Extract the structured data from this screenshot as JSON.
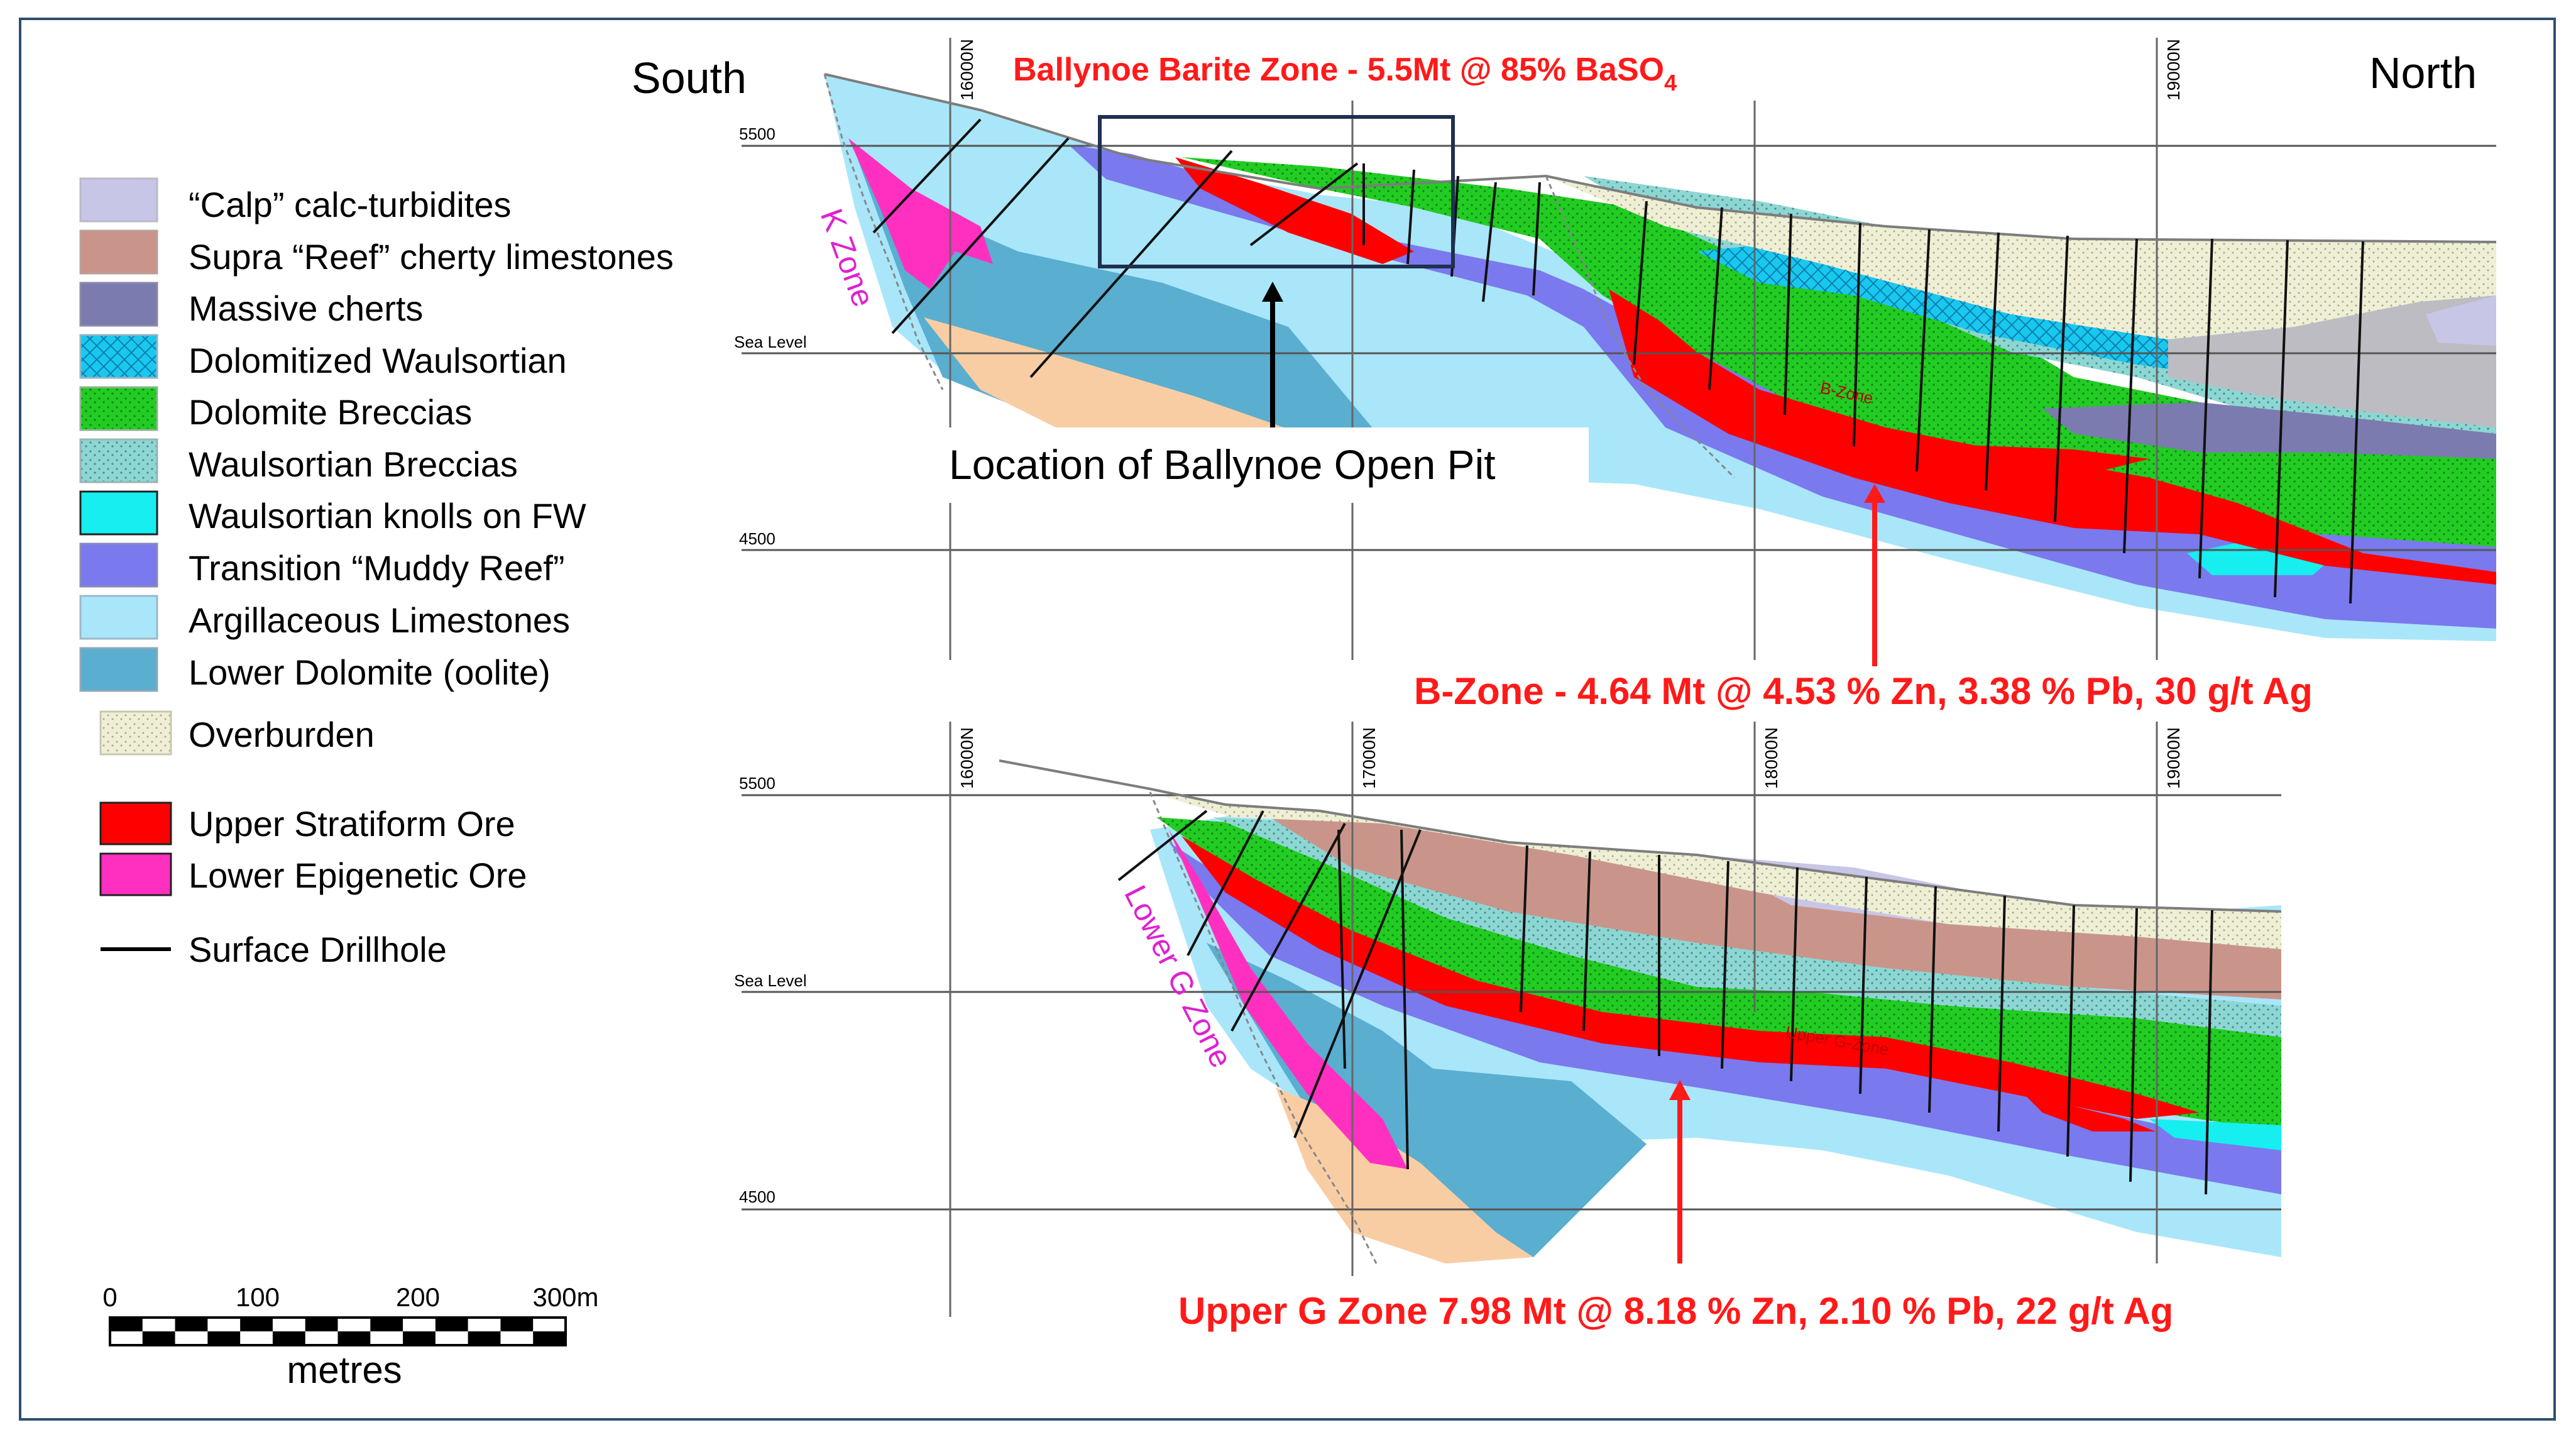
{
  "legend": [
    {
      "label": "“Calp” calc-turbidites",
      "fill": "#c8c6e6",
      "pattern": "none"
    },
    {
      "label": "Supra “Reef” cherty limestones",
      "fill": "#c9958a",
      "pattern": "none"
    },
    {
      "label": "Massive cherts",
      "fill": "#7b7bb0",
      "pattern": "none"
    },
    {
      "label": "Dolomitized Waulsortian",
      "fill": "#19c8ee",
      "pattern": "hatch"
    },
    {
      "label": "Dolomite Breccias",
      "fill": "#22cc22",
      "pattern": "dots"
    },
    {
      "label": "Waulsortian Breccias",
      "fill": "#8ed6d2",
      "pattern": "dots"
    },
    {
      "label": "Waulsortian knolls on FW",
      "fill": "#17eef0",
      "pattern": "none"
    },
    {
      "label": "Transition “Muddy Reef”",
      "fill": "#7b79ee",
      "pattern": "none"
    },
    {
      "label": "Argillaceous Limestones",
      "fill": "#a9e6fa",
      "pattern": "none"
    },
    {
      "label": "Lower Dolomite (oolite)",
      "fill": "#5aaed0",
      "pattern": "none"
    },
    {
      "label": "Overburden",
      "fill": "#efefd6",
      "pattern": "dots"
    },
    {
      "label": "Upper Stratiform Ore",
      "fill": "#ff0000",
      "pattern": "none"
    },
    {
      "label": "Lower Epigenetic Ore",
      "fill": "#ff30c0",
      "pattern": "none"
    },
    {
      "label": "Surface Drillhole",
      "fill": "#000000",
      "pattern": "line"
    }
  ],
  "scale_bar": {
    "ticks": [
      "0",
      "100",
      "200",
      "300m"
    ],
    "unit": "metres"
  },
  "top_section": {
    "south_label": "South",
    "north_label": "North",
    "title": "Ballynoe Barite Zone  -  5.5Mt @ 85% BaSO",
    "title_sub": "4",
    "grid_top": "5500",
    "grid_mid": "Sea Level",
    "grid_bottom": "4500",
    "northings": [
      "16000N",
      "19000N"
    ],
    "zone_label": "K Zone",
    "ore_label": "B-Zone",
    "pit_label": "Location of Ballynoe Open Pit",
    "grade": "B-Zone   -   4.64 Mt @ 4.53 % Zn, 3.38 % Pb, 30 g/t Ag"
  },
  "bottom_section": {
    "grid_top": "5500",
    "grid_mid": "Sea Level",
    "grid_bottom": "4500",
    "northings": [
      "16000N",
      "17000N",
      "18000N",
      "19000N"
    ],
    "zone_label": "Lower G Zone",
    "ore_label": "Upper G-Zone",
    "grade": "Upper G Zone   7.98 Mt @ 8.18 % Zn, 2.10 % Pb, 22 g/t Ag"
  },
  "colors": {
    "frame": "#2f4f6f",
    "annotation_red": "#ff1a1a",
    "zone_magenta": "#e020d0"
  }
}
